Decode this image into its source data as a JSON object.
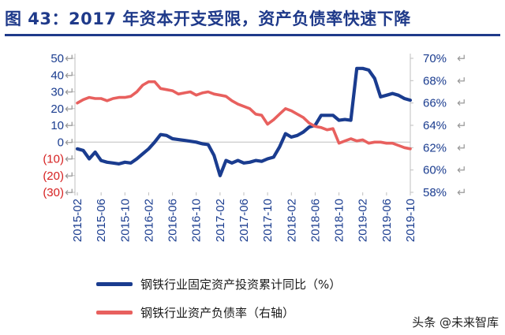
{
  "title": "图 43：2017 年资本开支受限，资产负债率快速下降",
  "watermark": "头条 @未来智库",
  "chart_data": {
    "type": "line",
    "x": [
      "2015-02",
      "2015-03",
      "2015-04",
      "2015-05",
      "2015-06",
      "2015-07",
      "2015-08",
      "2015-09",
      "2015-10",
      "2015-11",
      "2015-12",
      "2016-01",
      "2016-02",
      "2016-03",
      "2016-04",
      "2016-05",
      "2016-06",
      "2016-07",
      "2016-08",
      "2016-09",
      "2016-10",
      "2016-11",
      "2016-12",
      "2017-01",
      "2017-02",
      "2017-03",
      "2017-04",
      "2017-05",
      "2017-06",
      "2017-07",
      "2017-08",
      "2017-09",
      "2017-10",
      "2017-11",
      "2017-12",
      "2018-01",
      "2018-02",
      "2018-03",
      "2018-04",
      "2018-05",
      "2018-06",
      "2018-07",
      "2018-08",
      "2018-09",
      "2018-10",
      "2018-11",
      "2018-12",
      "2019-01",
      "2019-02",
      "2019-03",
      "2019-04",
      "2019-05",
      "2019-06",
      "2019-07",
      "2019-08",
      "2019-09",
      "2019-10"
    ],
    "x_tick_labels": [
      "2015-02",
      "2015-06",
      "2015-10",
      "2016-02",
      "2016-06",
      "2016-10",
      "2017-02",
      "2017-06",
      "2017-10",
      "2018-02",
      "2018-06",
      "2018-10",
      "2019-02",
      "2019-06",
      "2019-10"
    ],
    "y_left": {
      "ticks": [
        "50",
        "40",
        "30",
        "20",
        "10",
        "0",
        "(10)",
        "(20)",
        "(30)"
      ],
      "tick_values": [
        50,
        40,
        30,
        20,
        10,
        0,
        -10,
        -20,
        -30
      ],
      "range": [
        -30,
        50
      ],
      "negative_color": "#d62020"
    },
    "y_right": {
      "ticks": [
        "70%",
        "68%",
        "66%",
        "64%",
        "62%",
        "60%",
        "58%"
      ],
      "tick_values": [
        70,
        68,
        66,
        64,
        62,
        60,
        58
      ],
      "range": [
        58,
        70
      ]
    },
    "series": [
      {
        "name": "钢铁行业固定资产投资累计同比（%）",
        "axis": "left",
        "color": "#1a3c8f",
        "values": [
          -4,
          -5,
          -10,
          -6,
          -11,
          -12,
          -12.5,
          -13,
          -12,
          -12.5,
          -10,
          -7,
          -4,
          0,
          4.5,
          4,
          2,
          1.5,
          1,
          0.5,
          0,
          -1,
          -1.5,
          -8,
          -20,
          -11,
          -12.5,
          -11,
          -12.5,
          -12,
          -11,
          -11.5,
          -10,
          -9,
          -3,
          5,
          3,
          4,
          6,
          9,
          10,
          16,
          16,
          16,
          13,
          13.5,
          13,
          44,
          44,
          43,
          38,
          27,
          28,
          29,
          28,
          26,
          25
        ]
      },
      {
        "name": "钢铁行业资产负债率（右轴）",
        "axis": "right",
        "color": "#e8605e",
        "values": [
          66.0,
          66.3,
          66.5,
          66.4,
          66.4,
          66.2,
          66.4,
          66.5,
          66.5,
          66.6,
          67.0,
          67.6,
          67.9,
          67.9,
          67.3,
          67.2,
          67.1,
          66.8,
          66.9,
          67.0,
          66.7,
          66.9,
          67.0,
          66.8,
          66.7,
          66.6,
          66.2,
          65.9,
          65.7,
          65.5,
          65.0,
          64.9,
          64.1,
          64.5,
          65.0,
          65.5,
          65.3,
          65.0,
          64.7,
          64.2,
          63.9,
          63.8,
          63.6,
          63.7,
          62.4,
          62.6,
          62.8,
          62.6,
          62.7,
          62.4,
          62.5,
          62.5,
          62.4,
          62.4,
          62.2,
          62.0,
          61.9
        ]
      }
    ]
  }
}
